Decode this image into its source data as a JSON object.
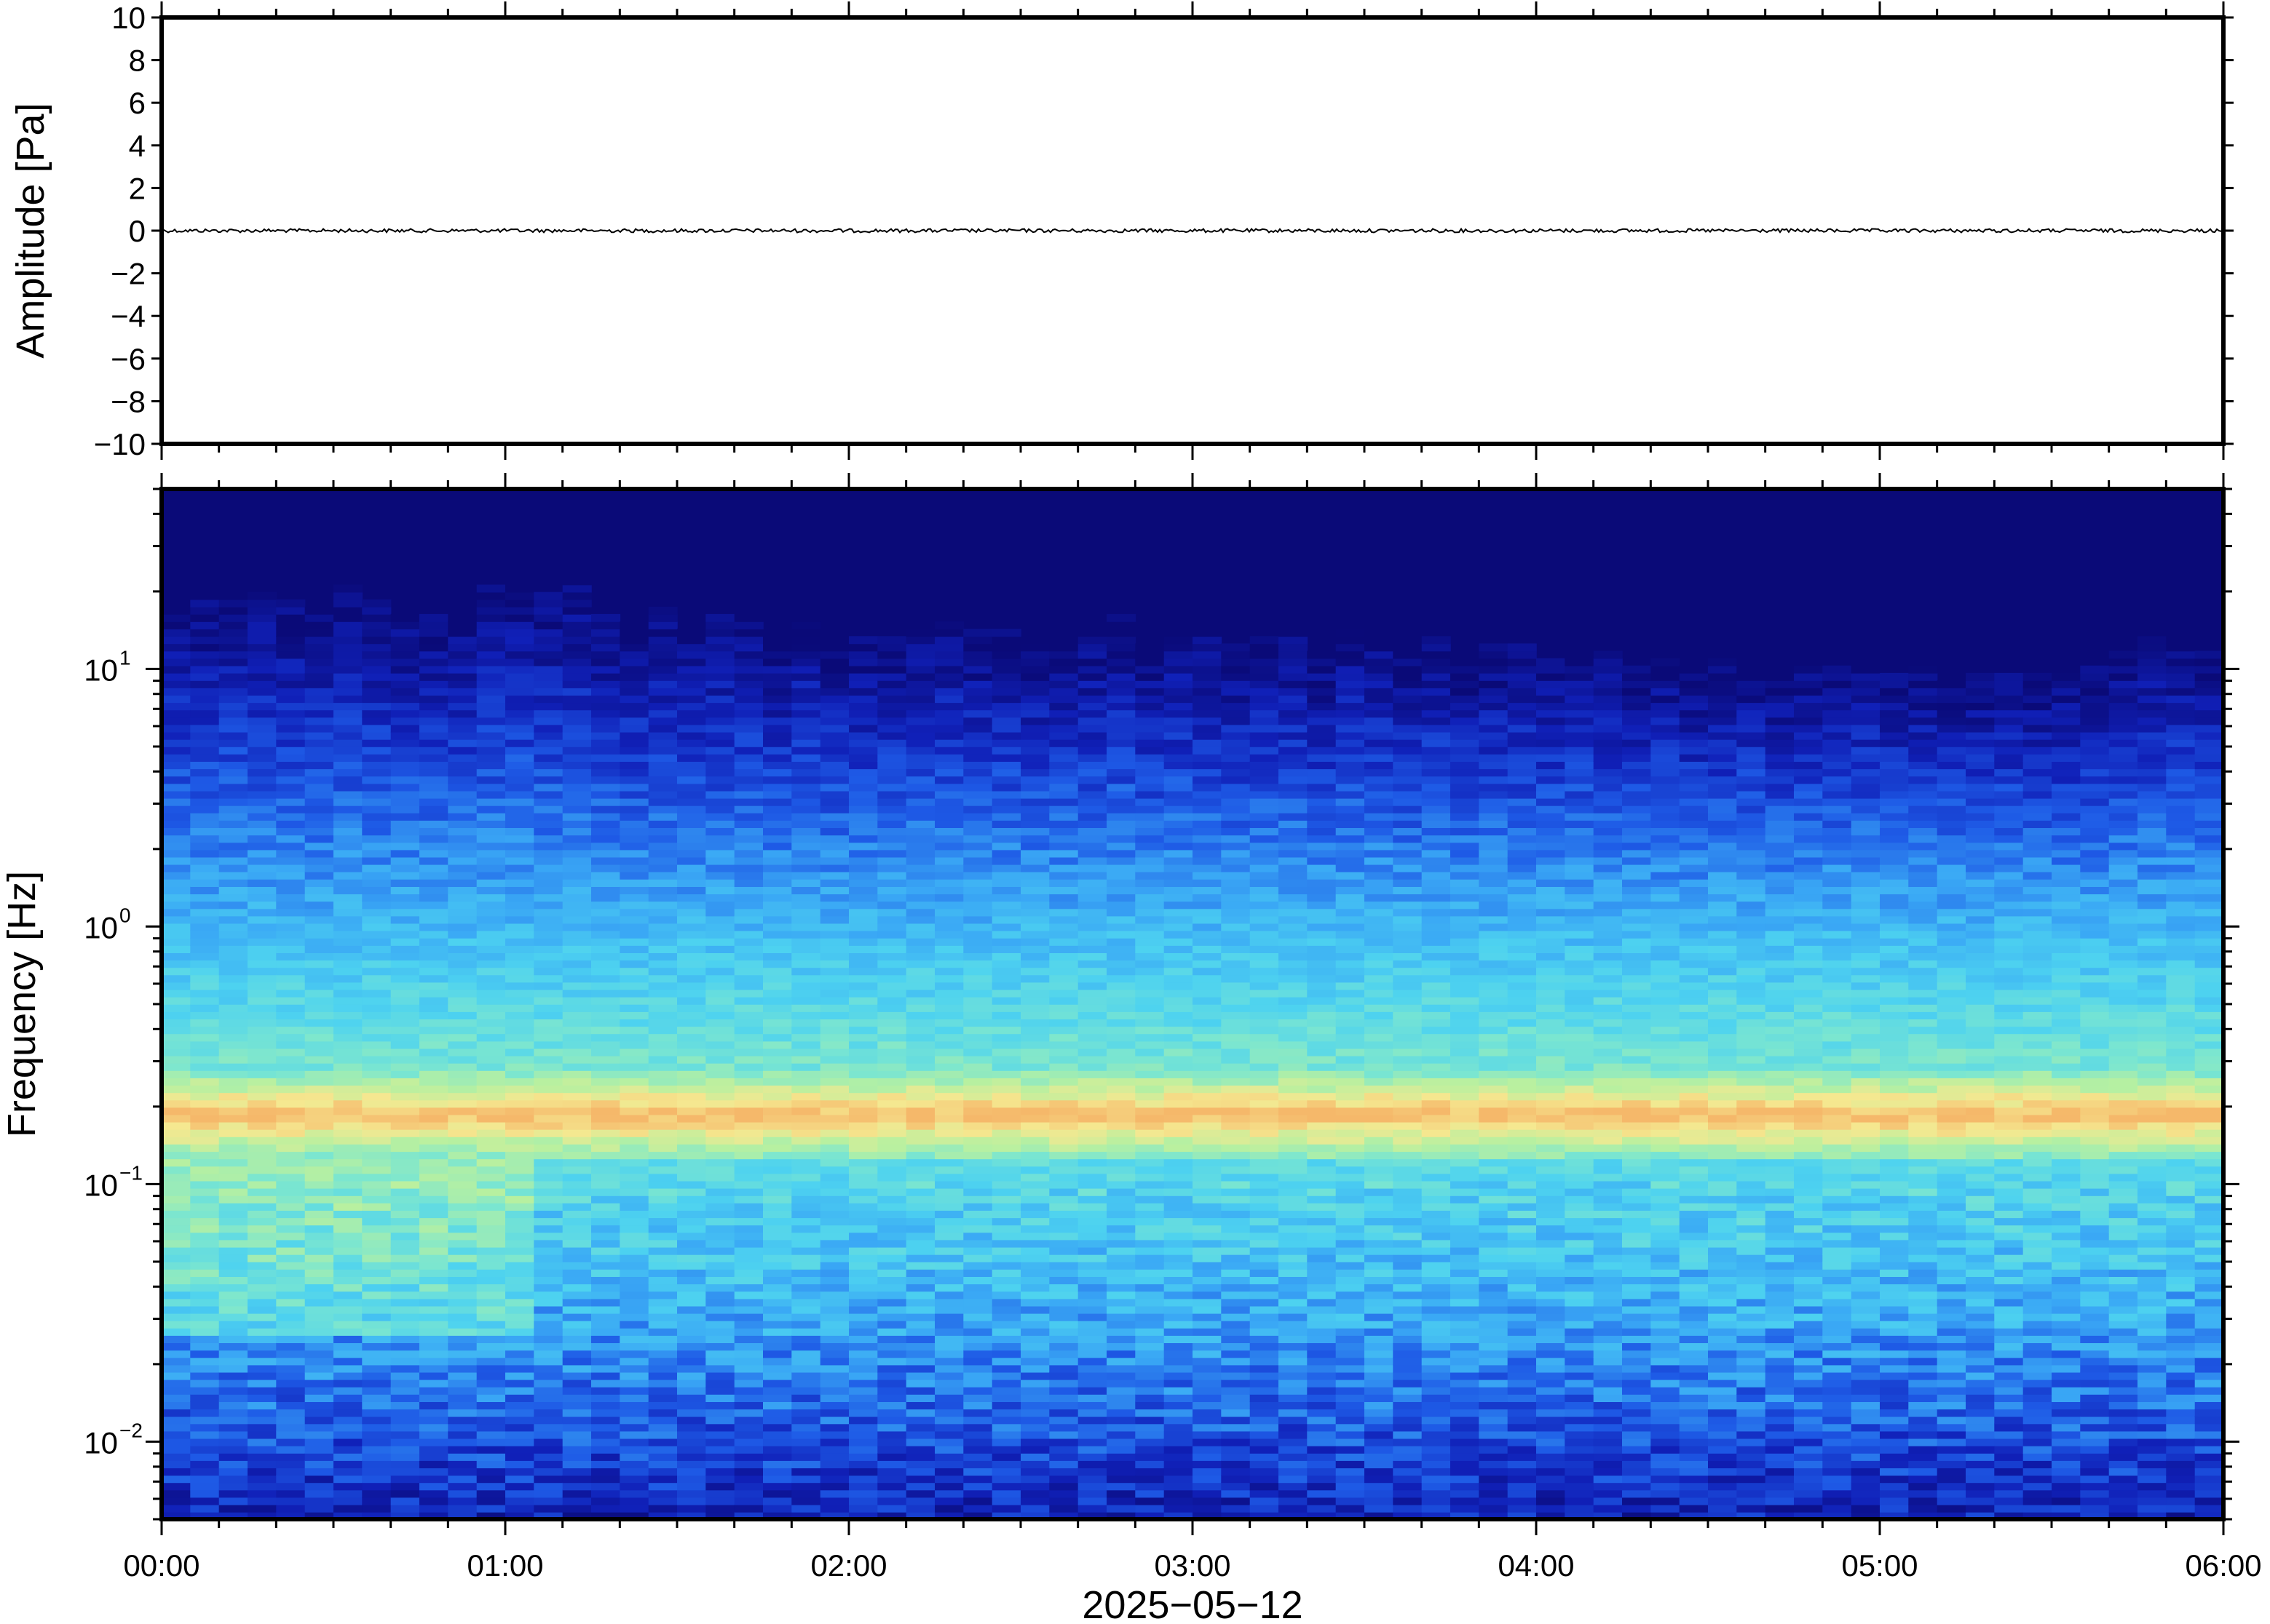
{
  "chart_data": [
    {
      "type": "line",
      "ylabel": "Amplitude [Pa]",
      "ylim": [
        -10,
        10
      ],
      "y_ticks": [
        "10",
        "8",
        "6",
        "4",
        "2",
        "0",
        "−2",
        "−4",
        "−6",
        "−8",
        "−10"
      ],
      "series": [
        {
          "x": [
            0,
            1,
            2,
            3,
            4,
            5,
            6
          ],
          "values": [
            0,
            0,
            0,
            0,
            0,
            0,
            0
          ]
        }
      ]
    },
    {
      "type": "heatmap",
      "ylabel": "Frequency [Hz]",
      "y_scale": "log",
      "ylim": [
        0.005,
        50
      ],
      "y_ticks": [
        {
          "value": 10,
          "base": "10",
          "exp": "1"
        },
        {
          "value": 1,
          "base": "10",
          "exp": "0"
        },
        {
          "value": 0.1,
          "base": "10",
          "exp": "−1"
        },
        {
          "value": 0.01,
          "base": "10",
          "exp": "−2"
        }
      ],
      "xlabel": "2025−05−12",
      "x_ticks": [
        "00:00",
        "01:00",
        "02:00",
        "03:00",
        "04:00",
        "05:00",
        "06:00"
      ],
      "xlim_hours": [
        0,
        6
      ],
      "colormap": [
        "#0a0a78",
        "#1020b8",
        "#1e5ae6",
        "#3aa8f5",
        "#4dd2f0",
        "#7be6d0",
        "#b8f0a0",
        "#f5e890",
        "#f5b86a"
      ]
    }
  ]
}
